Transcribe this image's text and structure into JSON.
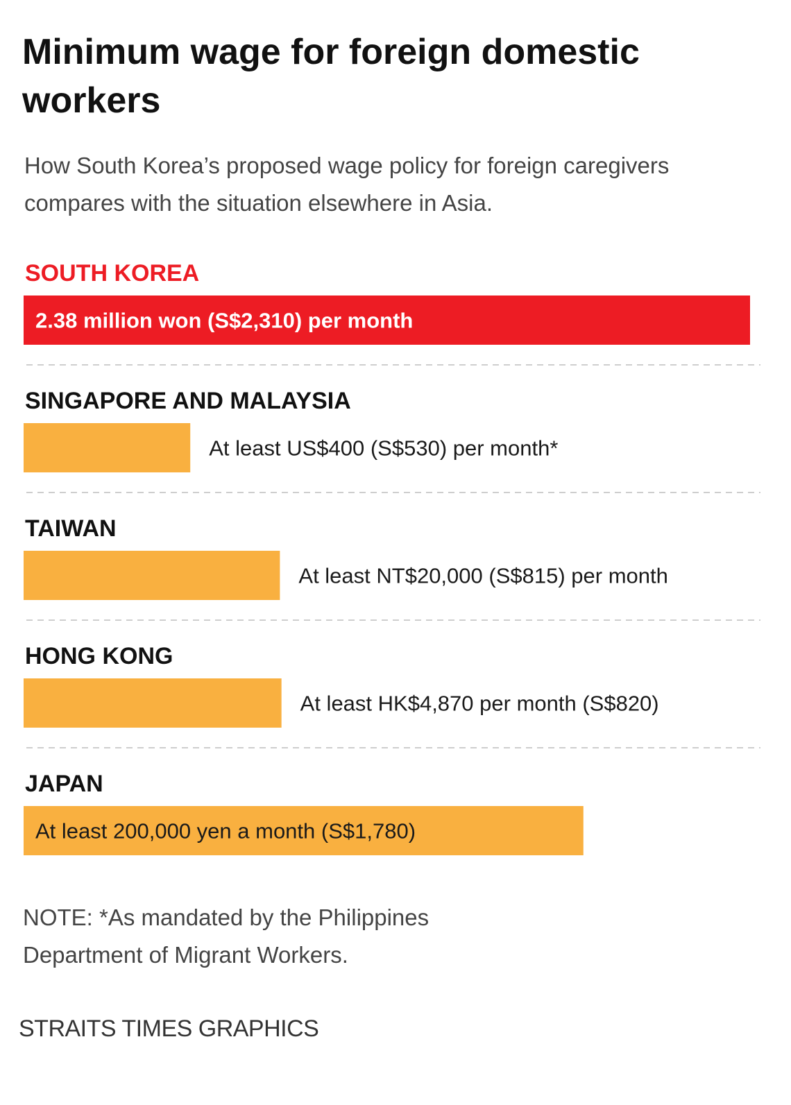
{
  "colors": {
    "highlight": "#ed1c24",
    "bar": "#f9b040",
    "divider": "#bdbdbd",
    "text": "#111111",
    "muted": "#444444"
  },
  "chart_data": {
    "type": "bar",
    "orientation": "horizontal",
    "title": "Minimum wage for foreign domestic workers",
    "subtitle": "How South Korea’s proposed wage policy for foreign caregivers compares with the situation elsewhere in Asia.",
    "unit": "S$ per month",
    "categories": [
      "SOUTH KOREA",
      "SINGAPORE AND MALAYSIA",
      "TAIWAN",
      "HONG KONG",
      "JAPAN"
    ],
    "values": [
      2310,
      530,
      815,
      820,
      1780
    ],
    "labels": [
      "2.38 million won (S$2,310) per month",
      "At least US$400 (S$530) per month*",
      "At least NT$20,000 (S$815) per month",
      "At least HK$4,870 per month (S$820)",
      "At least 200,000 yen a month (S$1,780)"
    ],
    "highlight": "SOUTH KOREA",
    "xlim": [
      0,
      2310
    ]
  },
  "note": "NOTE: *As mandated by the Philippines Department of Migrant Workers.",
  "credit": "STRAITS TIMES GRAPHICS"
}
